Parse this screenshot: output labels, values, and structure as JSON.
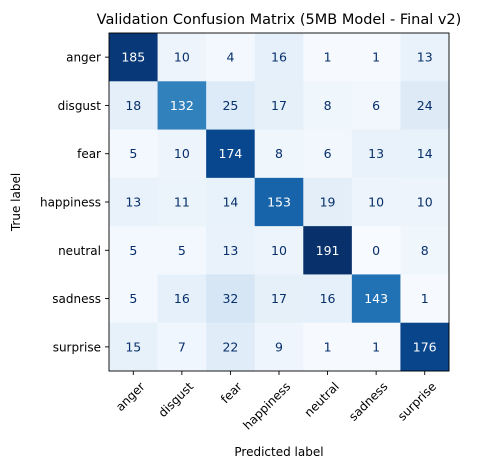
{
  "chart_data": {
    "type": "heatmap",
    "title": "Validation Confusion Matrix (5MB Model - Final v2)",
    "xlabel": "Predicted label",
    "ylabel": "True label",
    "x_categories": [
      "anger",
      "disgust",
      "fear",
      "happiness",
      "neutral",
      "sadness",
      "surprise"
    ],
    "y_categories": [
      "anger",
      "disgust",
      "fear",
      "happiness",
      "neutral",
      "sadness",
      "surprise"
    ],
    "values": [
      [
        185,
        10,
        4,
        16,
        1,
        1,
        13
      ],
      [
        18,
        132,
        25,
        17,
        8,
        6,
        24
      ],
      [
        5,
        10,
        174,
        8,
        6,
        13,
        14
      ],
      [
        13,
        11,
        14,
        153,
        19,
        10,
        10
      ],
      [
        5,
        5,
        13,
        10,
        191,
        0,
        8
      ],
      [
        5,
        16,
        32,
        17,
        16,
        143,
        1
      ],
      [
        15,
        7,
        22,
        9,
        1,
        1,
        176
      ]
    ],
    "colormap": "Blues",
    "value_range": [
      0,
      191
    ],
    "grid": false
  }
}
